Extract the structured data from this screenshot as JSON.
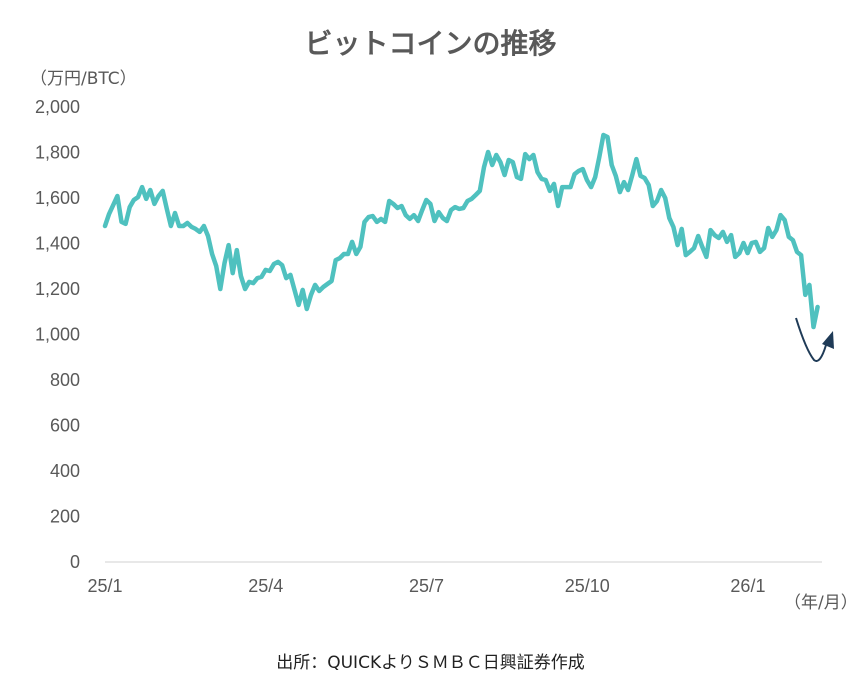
{
  "chart_data": {
    "type": "line",
    "title": "ビットコインの推移",
    "ylabel": "（万円/BTC）",
    "xlabel": "（年/月）",
    "source": "出所：QUICKよりＳＭＢＣ日興証券作成",
    "ylim": [
      0,
      2000
    ],
    "yticks": [
      "0",
      "200",
      "400",
      "600",
      "800",
      "1,000",
      "1,200",
      "1,400",
      "1,600",
      "1,800",
      "2,000"
    ],
    "ytick_values": [
      0,
      200,
      400,
      600,
      800,
      1000,
      1200,
      1400,
      1600,
      1800,
      2000
    ],
    "xticks": [
      "25/1",
      "25/4",
      "25/7",
      "25/10",
      "26/1"
    ],
    "xtick_months": [
      0,
      3,
      6,
      9,
      12
    ],
    "x_range_months": [
      0,
      13.3
    ],
    "grid": false,
    "series_color": "#4FC1BF",
    "annotation": {
      "type": "rebound-arrow",
      "color": "#1F3B57"
    },
    "series": [
      {
        "name": "ビットコイン",
        "values": [
          1477,
          1530,
          1569,
          1609,
          1495,
          1486,
          1560,
          1591,
          1604,
          1648,
          1596,
          1635,
          1574,
          1609,
          1631,
          1552,
          1477,
          1534,
          1477,
          1477,
          1490,
          1473,
          1464,
          1451,
          1477,
          1433,
          1354,
          1301,
          1200,
          1314,
          1393,
          1270,
          1371,
          1257,
          1200,
          1231,
          1226,
          1248,
          1253,
          1284,
          1279,
          1310,
          1319,
          1305,
          1248,
          1262,
          1196,
          1130,
          1196,
          1112,
          1174,
          1218,
          1191,
          1209,
          1222,
          1235,
          1327,
          1336,
          1354,
          1354,
          1407,
          1354,
          1385,
          1495,
          1516,
          1521,
          1495,
          1508,
          1495,
          1587,
          1574,
          1556,
          1565,
          1525,
          1508,
          1525,
          1499,
          1547,
          1591,
          1574,
          1499,
          1538,
          1512,
          1499,
          1547,
          1560,
          1552,
          1556,
          1587,
          1596,
          1613,
          1631,
          1736,
          1802,
          1745,
          1789,
          1758,
          1701,
          1767,
          1758,
          1692,
          1684,
          1793,
          1771,
          1789,
          1714,
          1684,
          1679,
          1631,
          1662,
          1565,
          1648,
          1648,
          1648,
          1705,
          1719,
          1727,
          1679,
          1648,
          1692,
          1780,
          1877,
          1868,
          1745,
          1697,
          1626,
          1670,
          1635,
          1701,
          1771,
          1697,
          1688,
          1657,
          1565,
          1587,
          1635,
          1600,
          1512,
          1473,
          1393,
          1464,
          1349,
          1363,
          1380,
          1433,
          1385,
          1341,
          1459,
          1437,
          1424,
          1451,
          1407,
          1437,
          1341,
          1358,
          1402,
          1358,
          1402,
          1407,
          1363,
          1380,
          1468,
          1429,
          1459,
          1525,
          1503,
          1429,
          1415,
          1363,
          1349,
          1174,
          1218,
          1033,
          1121
        ]
      }
    ]
  }
}
